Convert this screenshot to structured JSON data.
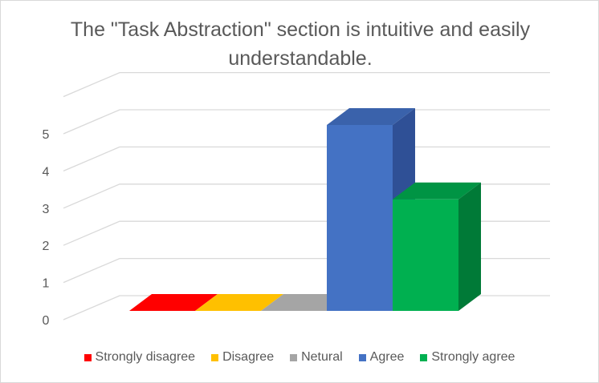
{
  "chart_data": {
    "type": "bar",
    "title": "The \"Task Abstraction\" section is intuitive and easily understandable.",
    "categories": [
      "Strongly disagree",
      "Disagree",
      "Netural",
      "Agree",
      "Strongly agree"
    ],
    "values": [
      0,
      0,
      0,
      5,
      3
    ],
    "y_ticks": [
      "0",
      "1",
      "2",
      "3",
      "4",
      "5"
    ],
    "ylim": [
      0,
      6
    ],
    "grid": true,
    "legend": "bottom",
    "three_d": true,
    "colors": [
      "#ff0000",
      "#ffc000",
      "#a5a5a5",
      "#4472c4",
      "#00b050"
    ],
    "side_colors": [
      "#a80000",
      "#b38600",
      "#737373",
      "#2f5096",
      "#007a37"
    ],
    "top_colors": [
      "#d00000",
      "#cc9a00",
      "#8c8c8c",
      "#3a62ab",
      "#009444"
    ]
  }
}
